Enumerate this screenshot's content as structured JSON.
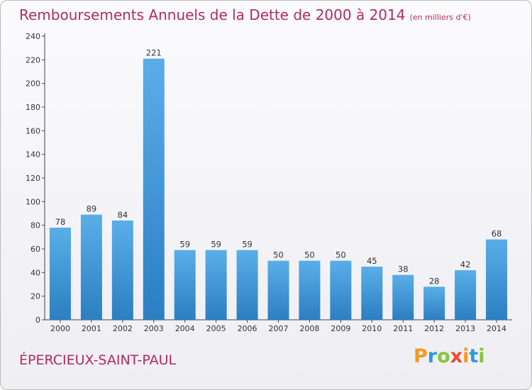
{
  "header": {
    "title": "Remboursements Annuels de la Dette de 2000 à 2014",
    "subtitle": "(en milliers d'€)"
  },
  "footer": {
    "commune": "ÉPERCIEUX-SAINT-PAUL",
    "logo": [
      "P",
      "r",
      "o",
      "x",
      "i",
      "t",
      "i"
    ]
  },
  "colors": {
    "bar_light": "#5aaee8",
    "bar_dark": "#2b7fc2",
    "title": "#b22a61",
    "logo": [
      "#f39a1f",
      "#2f9ad8",
      "#8ac33d",
      "#e94b35",
      "#f39a1f",
      "#2f9ad8",
      "#8ac33d"
    ]
  },
  "chart_data": {
    "type": "bar",
    "title": "Remboursements Annuels de la Dette de 2000 à 2014",
    "subtitle": "(en milliers d'€)",
    "categories": [
      "2000",
      "2001",
      "2002",
      "2003",
      "2004",
      "2005",
      "2006",
      "2007",
      "2008",
      "2009",
      "2010",
      "2011",
      "2012",
      "2013",
      "2014"
    ],
    "values": [
      78,
      89,
      84,
      221,
      59,
      59,
      59,
      50,
      50,
      50,
      45,
      38,
      28,
      42,
      68
    ],
    "ylim": [
      0,
      240
    ],
    "yticks": [
      0,
      20,
      40,
      60,
      80,
      100,
      120,
      140,
      160,
      180,
      200,
      220,
      240
    ],
    "grid": false,
    "xlabel": "",
    "ylabel": ""
  }
}
